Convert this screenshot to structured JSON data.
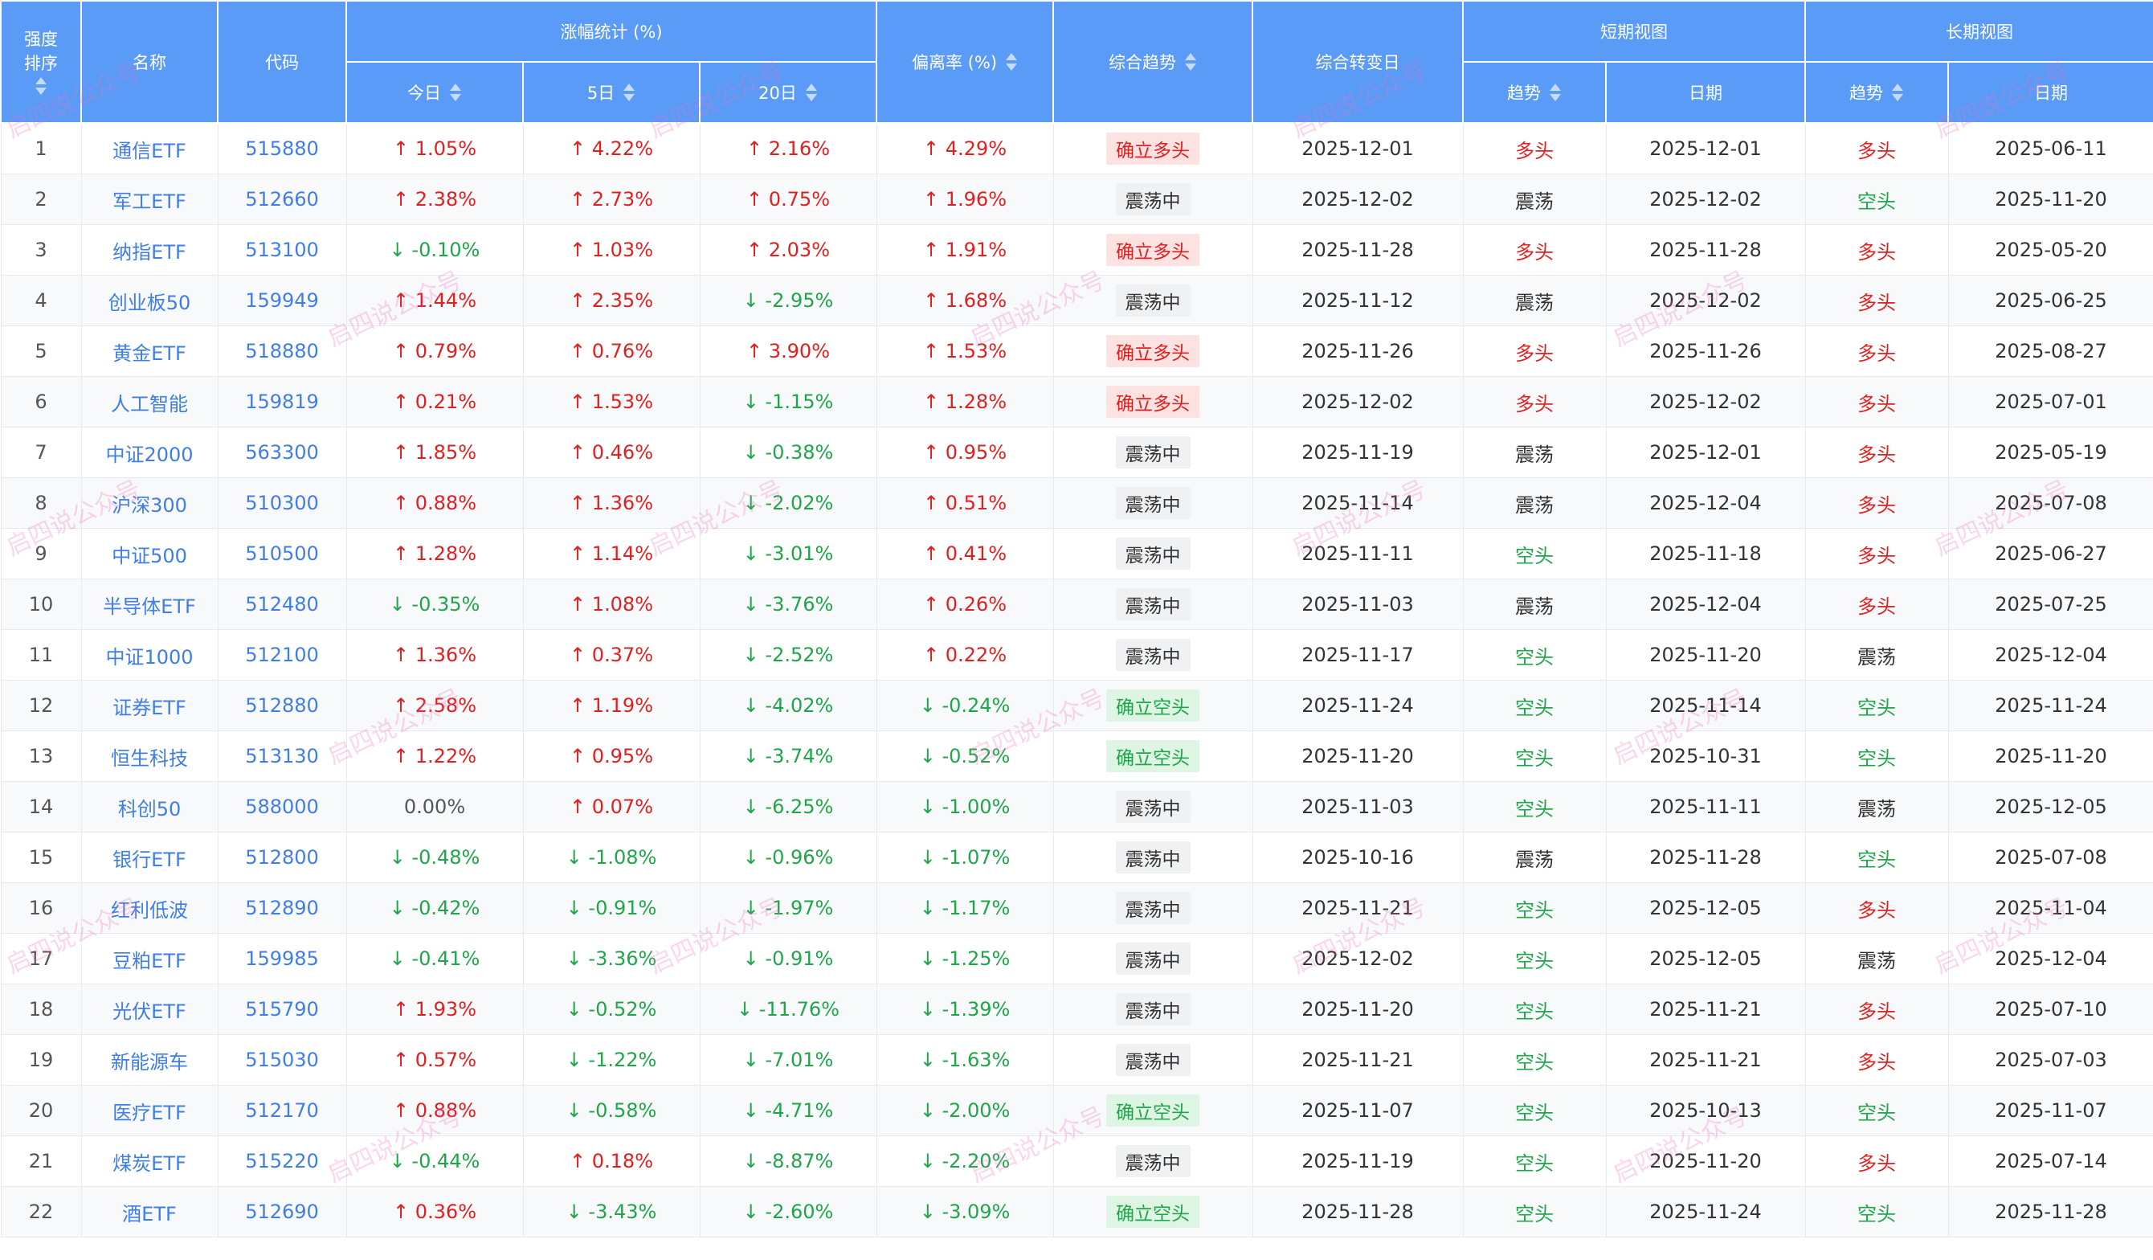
{
  "colors": {
    "header_bg": "#5b9bf8",
    "up": "#e02020",
    "down": "#1fa64a",
    "link": "#3f7ee8"
  },
  "headers": {
    "rank_line1": "强度",
    "rank_line2": "排序",
    "name": "名称",
    "code": "代码",
    "change_group": "涨幅统计 (%)",
    "today": "今日",
    "d5": "5日",
    "d20": "20日",
    "deviation": "偏离率 (%)",
    "trend": "综合趋势",
    "turn_date": "综合转变日",
    "short_group": "短期视图",
    "short_trend": "趋势",
    "short_date": "日期",
    "long_group": "长期视图",
    "long_trend": "趋势",
    "long_date": "日期"
  },
  "watermark": "启四说公众号",
  "rows": [
    {
      "rank": "1",
      "name": "通信ETF",
      "code": "515880",
      "today": "1.05%",
      "d5": "4.22%",
      "d20": "2.16%",
      "dev": "4.29%",
      "trend": "确立多头",
      "turn": "2025-12-01",
      "st": "多头",
      "sd": "2025-12-01",
      "lt": "多头",
      "ld": "2025-06-11"
    },
    {
      "rank": "2",
      "name": "军工ETF",
      "code": "512660",
      "today": "2.38%",
      "d5": "2.73%",
      "d20": "0.75%",
      "dev": "1.96%",
      "trend": "震荡中",
      "turn": "2025-12-02",
      "st": "震荡",
      "sd": "2025-12-02",
      "lt": "空头",
      "ld": "2025-11-20"
    },
    {
      "rank": "3",
      "name": "纳指ETF",
      "code": "513100",
      "today": "-0.10%",
      "d5": "1.03%",
      "d20": "2.03%",
      "dev": "1.91%",
      "trend": "确立多头",
      "turn": "2025-11-28",
      "st": "多头",
      "sd": "2025-11-28",
      "lt": "多头",
      "ld": "2025-05-20"
    },
    {
      "rank": "4",
      "name": "创业板50",
      "code": "159949",
      "today": "1.44%",
      "d5": "2.35%",
      "d20": "-2.95%",
      "dev": "1.68%",
      "trend": "震荡中",
      "turn": "2025-11-12",
      "st": "震荡",
      "sd": "2025-12-02",
      "lt": "多头",
      "ld": "2025-06-25"
    },
    {
      "rank": "5",
      "name": "黄金ETF",
      "code": "518880",
      "today": "0.79%",
      "d5": "0.76%",
      "d20": "3.90%",
      "dev": "1.53%",
      "trend": "确立多头",
      "turn": "2025-11-26",
      "st": "多头",
      "sd": "2025-11-26",
      "lt": "多头",
      "ld": "2025-08-27"
    },
    {
      "rank": "6",
      "name": "人工智能",
      "code": "159819",
      "today": "0.21%",
      "d5": "1.53%",
      "d20": "-1.15%",
      "dev": "1.28%",
      "trend": "确立多头",
      "turn": "2025-12-02",
      "st": "多头",
      "sd": "2025-12-02",
      "lt": "多头",
      "ld": "2025-07-01"
    },
    {
      "rank": "7",
      "name": "中证2000",
      "code": "563300",
      "today": "1.85%",
      "d5": "0.46%",
      "d20": "-0.38%",
      "dev": "0.95%",
      "trend": "震荡中",
      "turn": "2025-11-19",
      "st": "震荡",
      "sd": "2025-12-01",
      "lt": "多头",
      "ld": "2025-05-19"
    },
    {
      "rank": "8",
      "name": "沪深300",
      "code": "510300",
      "today": "0.88%",
      "d5": "1.36%",
      "d20": "-2.02%",
      "dev": "0.51%",
      "trend": "震荡中",
      "turn": "2025-11-14",
      "st": "震荡",
      "sd": "2025-12-04",
      "lt": "多头",
      "ld": "2025-07-08"
    },
    {
      "rank": "9",
      "name": "中证500",
      "code": "510500",
      "today": "1.28%",
      "d5": "1.14%",
      "d20": "-3.01%",
      "dev": "0.41%",
      "trend": "震荡中",
      "turn": "2025-11-11",
      "st": "空头",
      "sd": "2025-11-18",
      "lt": "多头",
      "ld": "2025-06-27"
    },
    {
      "rank": "10",
      "name": "半导体ETF",
      "code": "512480",
      "today": "-0.35%",
      "d5": "1.08%",
      "d20": "-3.76%",
      "dev": "0.26%",
      "trend": "震荡中",
      "turn": "2025-11-03",
      "st": "震荡",
      "sd": "2025-12-04",
      "lt": "多头",
      "ld": "2025-07-25"
    },
    {
      "rank": "11",
      "name": "中证1000",
      "code": "512100",
      "today": "1.36%",
      "d5": "0.37%",
      "d20": "-2.52%",
      "dev": "0.22%",
      "trend": "震荡中",
      "turn": "2025-11-17",
      "st": "空头",
      "sd": "2025-11-20",
      "lt": "震荡",
      "ld": "2025-12-04"
    },
    {
      "rank": "12",
      "name": "证券ETF",
      "code": "512880",
      "today": "2.58%",
      "d5": "1.19%",
      "d20": "-4.02%",
      "dev": "-0.24%",
      "trend": "确立空头",
      "turn": "2025-11-24",
      "st": "空头",
      "sd": "2025-11-14",
      "lt": "空头",
      "ld": "2025-11-24"
    },
    {
      "rank": "13",
      "name": "恒生科技",
      "code": "513130",
      "today": "1.22%",
      "d5": "0.95%",
      "d20": "-3.74%",
      "dev": "-0.52%",
      "trend": "确立空头",
      "turn": "2025-11-20",
      "st": "空头",
      "sd": "2025-10-31",
      "lt": "空头",
      "ld": "2025-11-20"
    },
    {
      "rank": "14",
      "name": "科创50",
      "code": "588000",
      "today": "0.00%",
      "d5": "0.07%",
      "d20": "-6.25%",
      "dev": "-1.00%",
      "trend": "震荡中",
      "turn": "2025-11-03",
      "st": "空头",
      "sd": "2025-11-11",
      "lt": "震荡",
      "ld": "2025-12-05"
    },
    {
      "rank": "15",
      "name": "银行ETF",
      "code": "512800",
      "today": "-0.48%",
      "d5": "-1.08%",
      "d20": "-0.96%",
      "dev": "-1.07%",
      "trend": "震荡中",
      "turn": "2025-10-16",
      "st": "震荡",
      "sd": "2025-11-28",
      "lt": "空头",
      "ld": "2025-07-08"
    },
    {
      "rank": "16",
      "name": "红利低波",
      "code": "512890",
      "today": "-0.42%",
      "d5": "-0.91%",
      "d20": "-1.97%",
      "dev": "-1.17%",
      "trend": "震荡中",
      "turn": "2025-11-21",
      "st": "空头",
      "sd": "2025-12-05",
      "lt": "多头",
      "ld": "2025-11-04"
    },
    {
      "rank": "17",
      "name": "豆粕ETF",
      "code": "159985",
      "today": "-0.41%",
      "d5": "-3.36%",
      "d20": "-0.91%",
      "dev": "-1.25%",
      "trend": "震荡中",
      "turn": "2025-12-02",
      "st": "空头",
      "sd": "2025-12-05",
      "lt": "震荡",
      "ld": "2025-12-04"
    },
    {
      "rank": "18",
      "name": "光伏ETF",
      "code": "515790",
      "today": "1.93%",
      "d5": "-0.52%",
      "d20": "-11.76%",
      "dev": "-1.39%",
      "trend": "震荡中",
      "turn": "2025-11-20",
      "st": "空头",
      "sd": "2025-11-21",
      "lt": "多头",
      "ld": "2025-07-10"
    },
    {
      "rank": "19",
      "name": "新能源车",
      "code": "515030",
      "today": "0.57%",
      "d5": "-1.22%",
      "d20": "-7.01%",
      "dev": "-1.63%",
      "trend": "震荡中",
      "turn": "2025-11-21",
      "st": "空头",
      "sd": "2025-11-21",
      "lt": "多头",
      "ld": "2025-07-03"
    },
    {
      "rank": "20",
      "name": "医疗ETF",
      "code": "512170",
      "today": "0.88%",
      "d5": "-0.58%",
      "d20": "-4.71%",
      "dev": "-2.00%",
      "trend": "确立空头",
      "turn": "2025-11-07",
      "st": "空头",
      "sd": "2025-10-13",
      "lt": "空头",
      "ld": "2025-11-07"
    },
    {
      "rank": "21",
      "name": "煤炭ETF",
      "code": "515220",
      "today": "-0.44%",
      "d5": "0.18%",
      "d20": "-8.87%",
      "dev": "-2.20%",
      "trend": "震荡中",
      "turn": "2025-11-19",
      "st": "空头",
      "sd": "2025-11-20",
      "lt": "多头",
      "ld": "2025-07-14"
    },
    {
      "rank": "22",
      "name": "酒ETF",
      "code": "512690",
      "today": "0.36%",
      "d5": "-3.43%",
      "d20": "-2.60%",
      "dev": "-3.09%",
      "trend": "确立空头",
      "turn": "2025-11-28",
      "st": "空头",
      "sd": "2025-11-24",
      "lt": "空头",
      "ld": "2025-11-28"
    }
  ]
}
